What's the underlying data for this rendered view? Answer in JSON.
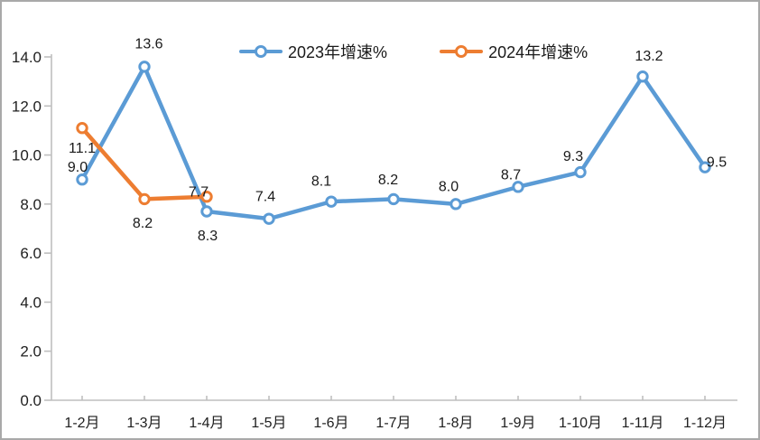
{
  "chart_data": {
    "type": "line",
    "categories": [
      "1-2月",
      "1-3月",
      "1-4月",
      "1-5月",
      "1-6月",
      "1-7月",
      "1-8月",
      "1-9月",
      "1-10月",
      "1-11月",
      "1-12月"
    ],
    "series": [
      {
        "name": "2023年增速%",
        "color": "#5B9BD5",
        "values": [
          9.0,
          13.6,
          7.7,
          7.4,
          8.1,
          8.2,
          8.0,
          8.7,
          9.3,
          13.2,
          9.5
        ],
        "label_offsets": [
          [
            -5,
            -14
          ],
          [
            5,
            -26
          ],
          [
            -9,
            -22
          ],
          [
            -4,
            -25
          ],
          [
            -11,
            -23
          ],
          [
            -6,
            -22
          ],
          [
            -8,
            -20
          ],
          [
            -8,
            -14
          ],
          [
            -8,
            -18
          ],
          [
            7,
            -23
          ],
          [
            13,
            -6
          ]
        ]
      },
      {
        "name": "2024年增速%",
        "color": "#ED7D31",
        "values": [
          11.1,
          8.2,
          8.3
        ],
        "label_offsets": [
          [
            0,
            22
          ],
          [
            -2,
            26
          ],
          [
            1,
            43
          ]
        ]
      }
    ],
    "title": "",
    "xlabel": "",
    "ylabel": "",
    "ylim": [
      0,
      14
    ],
    "ytick_step": 2,
    "ytick_decimals": 1,
    "grid": false,
    "legend_position": "top-center",
    "marker": "open-circle"
  },
  "style": {
    "axis_line_color": "#BFBFBF",
    "tick_label_color": "#1f1f1f",
    "data_label_color": "#1a1a1a",
    "frame_border_color": "#a9a9a9",
    "background": "#ffffff"
  }
}
